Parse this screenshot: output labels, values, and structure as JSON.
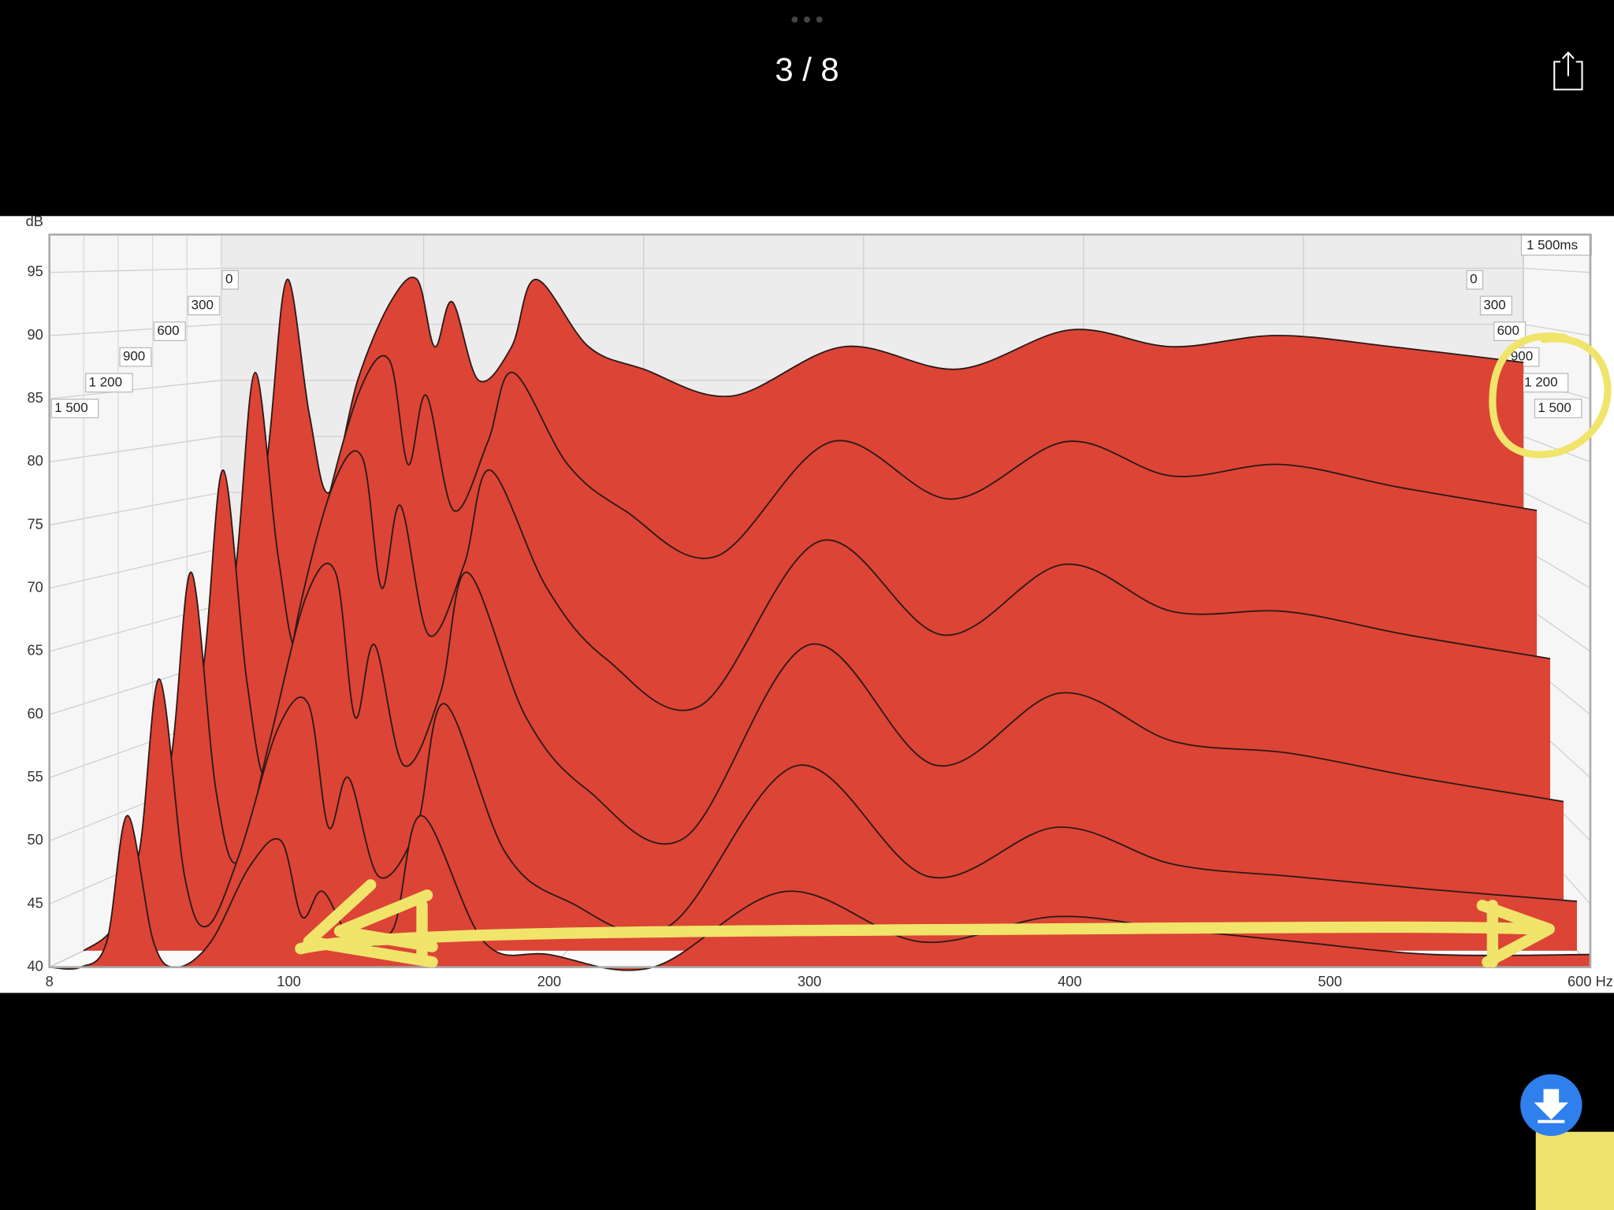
{
  "viewer": {
    "counter": "3 / 8"
  },
  "chart_data": {
    "type": "waterfall",
    "ylabel": "dB",
    "x": [
      8,
      20,
      30,
      38,
      48,
      57,
      70,
      85,
      97,
      105,
      113,
      125,
      140,
      151,
      175,
      200,
      240,
      291,
      343,
      394,
      440,
      488,
      540,
      600
    ],
    "color": "#dc4436",
    "series": [
      {
        "z": 0,
        "values": [
          45,
          60,
          80,
          94,
          82,
          75,
          85,
          92,
          94,
          88,
          92,
          85,
          88,
          94,
          88,
          86,
          83.6,
          88,
          86,
          89.5,
          88,
          89,
          88,
          86.6
        ]
      },
      {
        "z": 300,
        "values": [
          43,
          52,
          70,
          86,
          70,
          62,
          75,
          85,
          87,
          78,
          84,
          74,
          80,
          86,
          78,
          74,
          70,
          80,
          75,
          80,
          77,
          78,
          76,
          74
        ]
      },
      {
        "z": 600,
        "values": [
          42,
          48,
          62,
          78,
          60,
          52,
          66,
          77,
          79,
          68,
          75,
          64,
          70,
          78,
          68,
          62,
          58,
          72,
          64,
          70,
          66,
          66,
          64,
          62
        ]
      },
      {
        "z": 900,
        "values": [
          41,
          45,
          55,
          70,
          52,
          46,
          56,
          68,
          70,
          58,
          64,
          54,
          60,
          70,
          58,
          52,
          48,
          64,
          54,
          60,
          56,
          55,
          53,
          51
        ]
      },
      {
        "z": 1200,
        "values": [
          40,
          42,
          48,
          62,
          46,
          42,
          48,
          58,
          60,
          50,
          54,
          46,
          50,
          60,
          48,
          44,
          42,
          55,
          46,
          50,
          47,
          46,
          45,
          44
        ]
      },
      {
        "z": 1500,
        "values": [
          40,
          40,
          42,
          52,
          42,
          40,
          42,
          48,
          50,
          44,
          46,
          42,
          43,
          52,
          42,
          41,
          40,
          46,
          42,
          44,
          43,
          42,
          41,
          41
        ]
      }
    ],
    "xlim": [
      8,
      600
    ],
    "xticks": [
      8,
      100,
      200,
      300,
      400,
      500,
      {
        "value": 600,
        "label": "600 Hz"
      }
    ],
    "ylim": [
      40,
      98
    ],
    "yticks": [
      40,
      45,
      50,
      55,
      60,
      65,
      70,
      75,
      80,
      85,
      90,
      95
    ],
    "zlim": [
      0,
      1500
    ],
    "zticks": [
      0,
      300,
      600,
      900,
      {
        "value": 1200,
        "label": "1 200"
      },
      {
        "value": 1500,
        "label": "1 500"
      }
    ],
    "zend": {
      "value": 1500,
      "label": "1 500ms"
    },
    "grid": true
  }
}
